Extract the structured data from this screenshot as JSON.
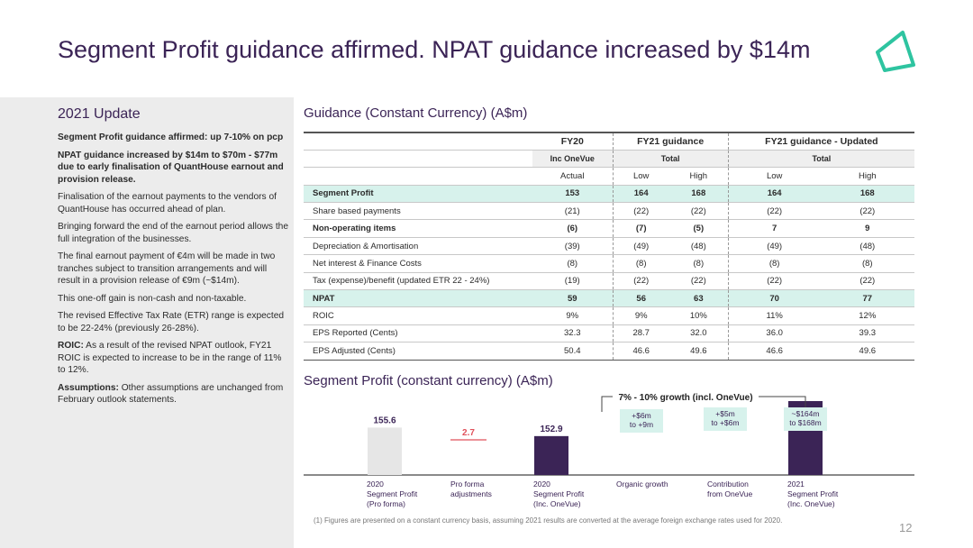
{
  "title": "Segment Profit guidance affirmed. NPAT guidance increased by $14m",
  "page_number": "12",
  "brand_color": "#3b2456",
  "accent_color": "#2ec4a0",
  "left_panel": {
    "heading": "2021 Update",
    "p1_bold": "Segment Profit guidance affirmed: up 7-10% on pcp",
    "p2_bold": "NPAT guidance increased by $14m to $70m - $77m due to early finalisation of QuantHouse earnout and provision release.",
    "p3": "Finalisation of the earnout payments to the vendors of QuantHouse has occurred ahead of plan.",
    "p4": "Bringing forward the end of the earnout period allows the full integration of the businesses.",
    "p5": "The final earnout payment of €4m will be made in two tranches subject to transition arrangements and will result in a provision release of €9m (~$14m).",
    "p6": "This one-off gain is non-cash and non-taxable.",
    "p7": "The revised Effective Tax Rate (ETR) range is expected to be 22-24% (previously 26-28%).",
    "p8_bold": "ROIC:",
    "p8": " As a result of the revised NPAT outlook, FY21 ROIC is expected to increase to be in the range of 11% to 12%.",
    "p9_bold": "Assumptions:",
    "p9": " Other assumptions are unchanged from February outlook statements."
  },
  "table": {
    "heading": "Guidance (Constant Currency) (A$m)",
    "header1": [
      "FY20",
      "FY21 guidance",
      "FY21 guidance - Updated"
    ],
    "header2": [
      "Inc OneVue",
      "Total",
      "Total"
    ],
    "header3": [
      "Actual",
      "Low",
      "High",
      "Low",
      "High"
    ],
    "rows": [
      {
        "label": "Segment Profit",
        "values": [
          "153",
          "164",
          "168",
          "164",
          "168"
        ]
      },
      {
        "label": "Share based payments",
        "values": [
          "(21)",
          "(22)",
          "(22)",
          "(22)",
          "(22)"
        ]
      },
      {
        "label": "Non-operating items",
        "values": [
          "(6)",
          "(7)",
          "(5)",
          "7",
          "9"
        ]
      },
      {
        "label": "Depreciation & Amortisation",
        "values": [
          "(39)",
          "(49)",
          "(48)",
          "(49)",
          "(48)"
        ]
      },
      {
        "label": "Net interest & Finance Costs",
        "values": [
          "(8)",
          "(8)",
          "(8)",
          "(8)",
          "(8)"
        ]
      },
      {
        "label": "Tax (expense)/benefit (updated ETR 22 - 24%)",
        "values": [
          "(19)",
          "(22)",
          "(22)",
          "(22)",
          "(22)"
        ]
      },
      {
        "label": "NPAT",
        "values": [
          "59",
          "56",
          "63",
          "70",
          "77"
        ]
      },
      {
        "label": "ROIC",
        "values": [
          "9%",
          "9%",
          "10%",
          "11%",
          "12%"
        ]
      },
      {
        "label": "EPS Reported (Cents)",
        "values": [
          "32.3",
          "28.7",
          "32.0",
          "36.0",
          "39.3"
        ]
      },
      {
        "label": "EPS Adjusted (Cents)",
        "values": [
          "50.4",
          "46.6",
          "49.6",
          "46.6",
          "49.6"
        ]
      }
    ]
  },
  "chart_section": {
    "heading": "Segment Profit (constant currency) (A$m)",
    "footnote": "(1)  Figures are presented on a constant currency basis, assuming 2021 results are converted at the average foreign exchange rates used for 2020."
  },
  "chart_data": {
    "type": "bar",
    "subtype": "waterfall",
    "growth_label": "7% - 10% growth (incl. OneVue)",
    "categories": [
      [
        "2020",
        "Segment Profit",
        "(Pro forma)"
      ],
      [
        "Pro forma",
        "adjustments"
      ],
      [
        "2020",
        "Segment Profit",
        "(Inc. OneVue)"
      ],
      [
        "Organic growth"
      ],
      [
        "Contribution",
        "from OneVue"
      ],
      [
        "2021",
        "Segment Profit",
        "(Inc. OneVue)"
      ]
    ],
    "values": [
      155.6,
      2.7,
      152.9,
      null,
      null,
      164
    ],
    "data_labels": [
      "155.6",
      "2.7",
      "152.9",
      "+$6m\nto +9m",
      "+$5m\nto +$6m",
      "~$164m\nto $168m"
    ],
    "bar_colors": [
      "#e6e6e6",
      "#e0505a",
      "#3b2456",
      null,
      null,
      "#3b2456"
    ],
    "box_color": "#d7f2ec"
  }
}
